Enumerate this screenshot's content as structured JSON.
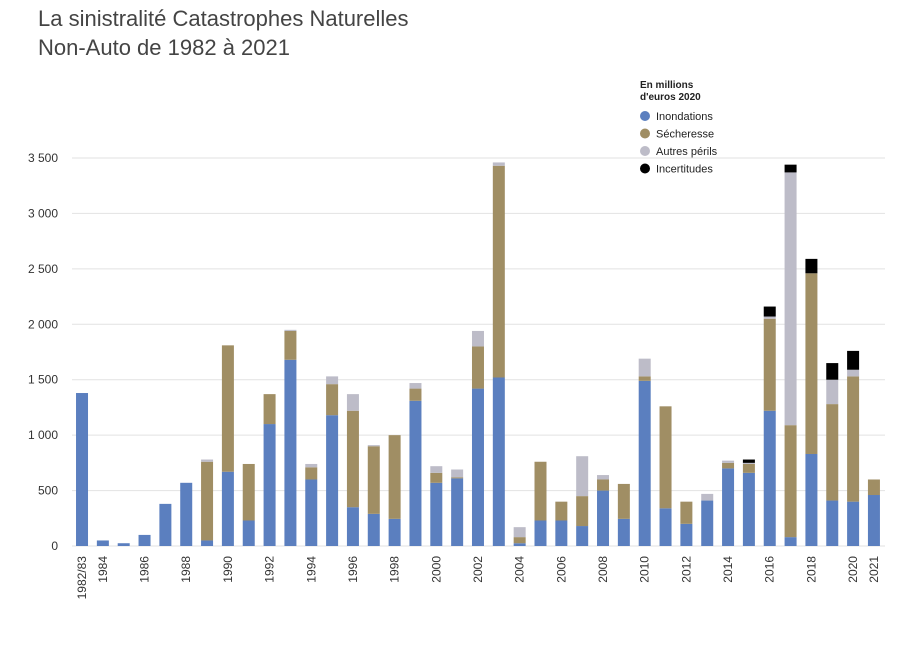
{
  "chart_data": {
    "type": "stacked_bar",
    "title": [
      "La sinistralité Catastrophes Naturelles",
      "Non-Auto de 1982 à 2021"
    ],
    "legend_title": [
      "En millions",
      "d'euros 2020"
    ],
    "categories": [
      "1982/83",
      "1984",
      null,
      "1986",
      null,
      "1988",
      null,
      "1990",
      null,
      "1992",
      null,
      "1994",
      null,
      "1996",
      null,
      "1998",
      null,
      "2000",
      null,
      "2002",
      null,
      "2004",
      null,
      "2006",
      null,
      "2008",
      null,
      "2010",
      null,
      "2012",
      null,
      "2014",
      null,
      "2016",
      null,
      "2018",
      null,
      "2020",
      "2021"
    ],
    "series": [
      {
        "name": "Inondations",
        "color": "#5b7fbf",
        "values": [
          1380,
          50,
          25,
          100,
          380,
          570,
          50,
          670,
          230,
          1100,
          1680,
          600,
          1180,
          350,
          290,
          245,
          1310,
          570,
          610,
          1420,
          1520,
          25,
          230,
          230,
          180,
          500,
          245,
          1490,
          340,
          200,
          410,
          700,
          660,
          1220,
          80,
          830,
          410,
          400,
          460
        ]
      },
      {
        "name": "Sécheresse",
        "color": "#a08e64",
        "values": [
          0,
          0,
          0,
          0,
          0,
          0,
          710,
          1140,
          510,
          270,
          260,
          110,
          280,
          870,
          610,
          755,
          110,
          90,
          10,
          380,
          1910,
          55,
          530,
          170,
          270,
          100,
          315,
          40,
          920,
          200,
          0,
          50,
          80,
          830,
          1010,
          1630,
          870,
          1130,
          140
        ]
      },
      {
        "name": "Autres périls",
        "color": "#bdbcc8",
        "values": [
          0,
          0,
          0,
          0,
          0,
          0,
          20,
          0,
          0,
          0,
          10,
          30,
          70,
          150,
          10,
          0,
          50,
          60,
          70,
          140,
          30,
          90,
          0,
          0,
          360,
          40,
          0,
          160,
          0,
          0,
          60,
          20,
          10,
          20,
          2280,
          0,
          220,
          60,
          0
        ]
      },
      {
        "name": "Incertitudes",
        "color": "#000000",
        "values": [
          0,
          0,
          0,
          0,
          0,
          0,
          0,
          0,
          0,
          0,
          0,
          0,
          0,
          0,
          0,
          0,
          0,
          0,
          0,
          0,
          0,
          0,
          0,
          0,
          0,
          0,
          0,
          0,
          0,
          0,
          0,
          0,
          30,
          90,
          70,
          130,
          150,
          170,
          0
        ]
      }
    ],
    "ylim": [
      0,
      3500
    ],
    "yticks": [
      0,
      500,
      {
        "value": 1000,
        "label": "1 000"
      },
      {
        "value": 1500,
        "label": "1 500"
      },
      {
        "value": 2000,
        "label": "2 000"
      },
      {
        "value": 2500,
        "label": "2 500"
      },
      {
        "value": 3000,
        "label": "3 000"
      },
      {
        "value": 3500,
        "label": "3 500"
      }
    ],
    "grid": true
  }
}
